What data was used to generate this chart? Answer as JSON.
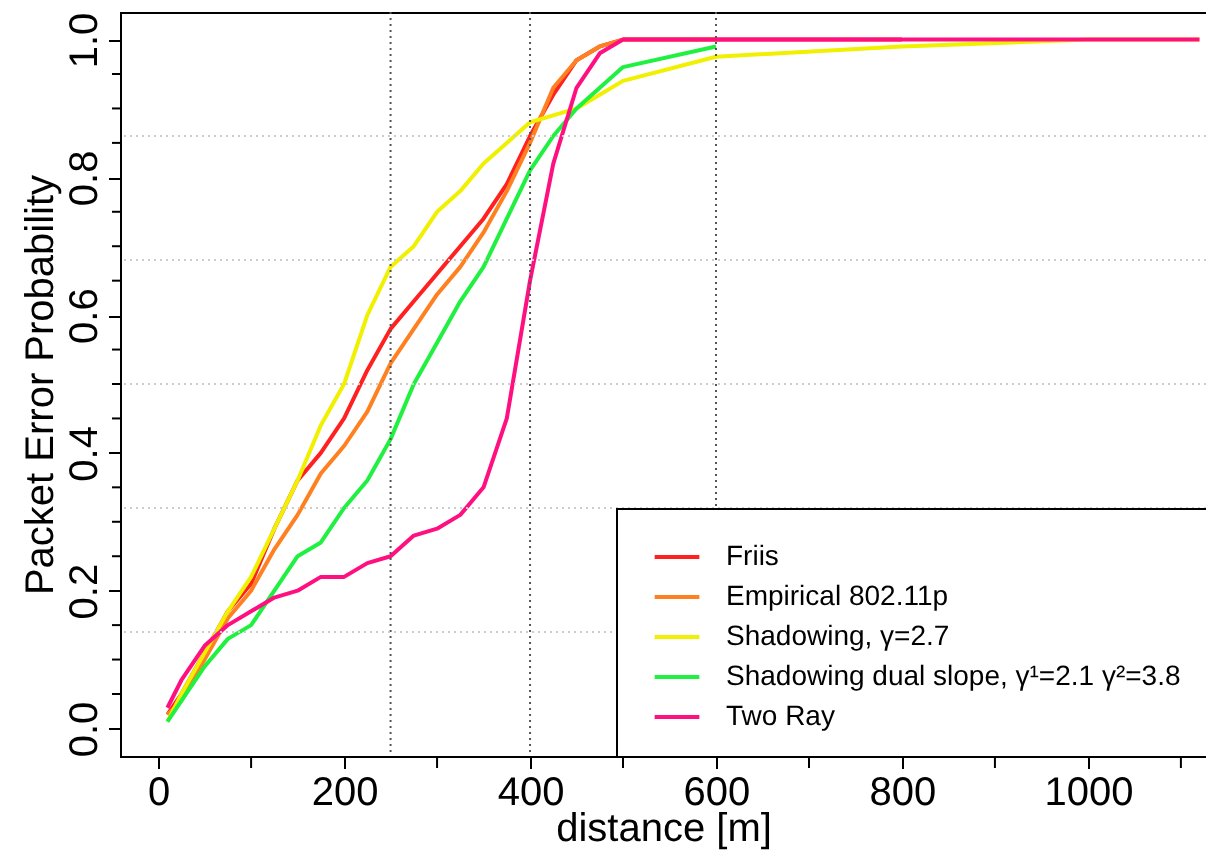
{
  "chart_data": {
    "type": "line",
    "xlabel": "distance [m]",
    "ylabel": "Packet Error Probability",
    "x": [
      10,
      25,
      50,
      75,
      100,
      125,
      150,
      175,
      200,
      225,
      250,
      275,
      300,
      325,
      350,
      375,
      400,
      425,
      450,
      475,
      500,
      600,
      800,
      1000,
      1120
    ],
    "series": [
      {
        "name": "Friis",
        "color": "#ff2020",
        "values": [
          0.02,
          0.05,
          0.11,
          0.17,
          0.21,
          0.29,
          0.36,
          0.4,
          0.45,
          0.52,
          0.58,
          0.62,
          0.66,
          0.7,
          0.74,
          0.79,
          0.86,
          0.92,
          0.97,
          0.99,
          1.0,
          1.0,
          1.0,
          null,
          null
        ]
      },
      {
        "name": "Empirical 802.11p",
        "color": "#ff8020",
        "values": [
          0.02,
          0.04,
          0.1,
          0.16,
          0.2,
          0.26,
          0.31,
          0.37,
          0.41,
          0.46,
          0.53,
          0.58,
          0.63,
          0.67,
          0.72,
          0.78,
          0.85,
          0.93,
          0.97,
          0.99,
          1.0,
          1.0,
          null,
          null,
          null
        ]
      },
      {
        "name": "Shadowing, γ=2.7",
        "color": "#f0f000",
        "values": [
          0.01,
          0.05,
          0.11,
          0.17,
          0.22,
          0.29,
          0.36,
          0.44,
          0.5,
          0.6,
          0.67,
          0.7,
          0.75,
          0.78,
          0.82,
          0.85,
          0.88,
          0.89,
          0.9,
          0.92,
          0.94,
          0.975,
          0.99,
          1.0,
          1.0
        ]
      },
      {
        "name": "Shadowing dual slope, γ¹=2.1 γ²=3.8",
        "color": "#20f040",
        "values": [
          0.01,
          0.04,
          0.09,
          0.13,
          0.15,
          0.2,
          0.25,
          0.27,
          0.32,
          0.36,
          0.42,
          0.5,
          0.56,
          0.62,
          0.67,
          0.74,
          0.81,
          0.86,
          0.9,
          0.93,
          0.96,
          0.99,
          null,
          null,
          null
        ]
      },
      {
        "name": "Two Ray",
        "color": "#ff1080",
        "values": [
          0.03,
          0.07,
          0.12,
          0.15,
          0.17,
          0.19,
          0.2,
          0.22,
          0.22,
          0.24,
          0.25,
          0.28,
          0.29,
          0.31,
          0.35,
          0.45,
          0.65,
          0.82,
          0.93,
          0.98,
          1.0,
          1.0,
          1.0,
          1.0,
          1.0
        ]
      }
    ],
    "xlim": [
      -41,
      1127
    ],
    "ylim": [
      -0.04,
      1.04
    ],
    "xticks": [
      0,
      {
        "value": 100,
        "label": null
      },
      200,
      {
        "value": 300,
        "label": null
      },
      400,
      {
        "value": 500,
        "label": null
      },
      600,
      {
        "value": 700,
        "label": null
      },
      800,
      {
        "value": 900,
        "label": null
      },
      1000,
      {
        "value": 1100,
        "label": null
      }
    ],
    "yticks": [
      {
        "value": 0,
        "label": "0.0"
      },
      {
        "value": 0.05,
        "label": null
      },
      {
        "value": 0.1,
        "label": null
      },
      {
        "value": 0.15,
        "label": null
      },
      0.2,
      {
        "value": 0.25,
        "label": null
      },
      {
        "value": 0.3,
        "label": null
      },
      {
        "value": 0.35,
        "label": null
      },
      0.4,
      {
        "value": 0.45,
        "label": null
      },
      {
        "value": 0.5,
        "label": null
      },
      {
        "value": 0.55,
        "label": null
      },
      0.6,
      {
        "value": 0.65,
        "label": null
      },
      {
        "value": 0.7,
        "label": null
      },
      {
        "value": 0.75,
        "label": null
      },
      0.8,
      {
        "value": 0.85,
        "label": null
      },
      {
        "value": 0.9,
        "label": null
      },
      {
        "value": 0.95,
        "label": null
      },
      {
        "value": 1,
        "label": "1.0"
      }
    ],
    "ref_lines": [
      {
        "axis": "x",
        "value": 250,
        "color": "#555555",
        "line_style": "dotted"
      },
      {
        "axis": "x",
        "value": 400,
        "color": "#555555",
        "line_style": "dotted"
      },
      {
        "axis": "x",
        "value": 600,
        "color": "#555555",
        "line_style": "dotted"
      },
      {
        "axis": "y",
        "value": 0.86,
        "color": "#cccccc",
        "line_style": "dotted"
      },
      {
        "axis": "y",
        "value": 0.68,
        "color": "#cccccc",
        "line_style": "dotted"
      },
      {
        "axis": "y",
        "value": 0.5,
        "color": "#cccccc",
        "line_style": "dotted"
      },
      {
        "axis": "y",
        "value": 0.32,
        "color": "#cccccc",
        "line_style": "dotted"
      },
      {
        "axis": "y",
        "value": 0.14,
        "color": "#cccccc",
        "line_style": "dotted"
      }
    ],
    "grid": false,
    "legend": "bottom right",
    "marker": "none",
    "line_style": "solid"
  }
}
